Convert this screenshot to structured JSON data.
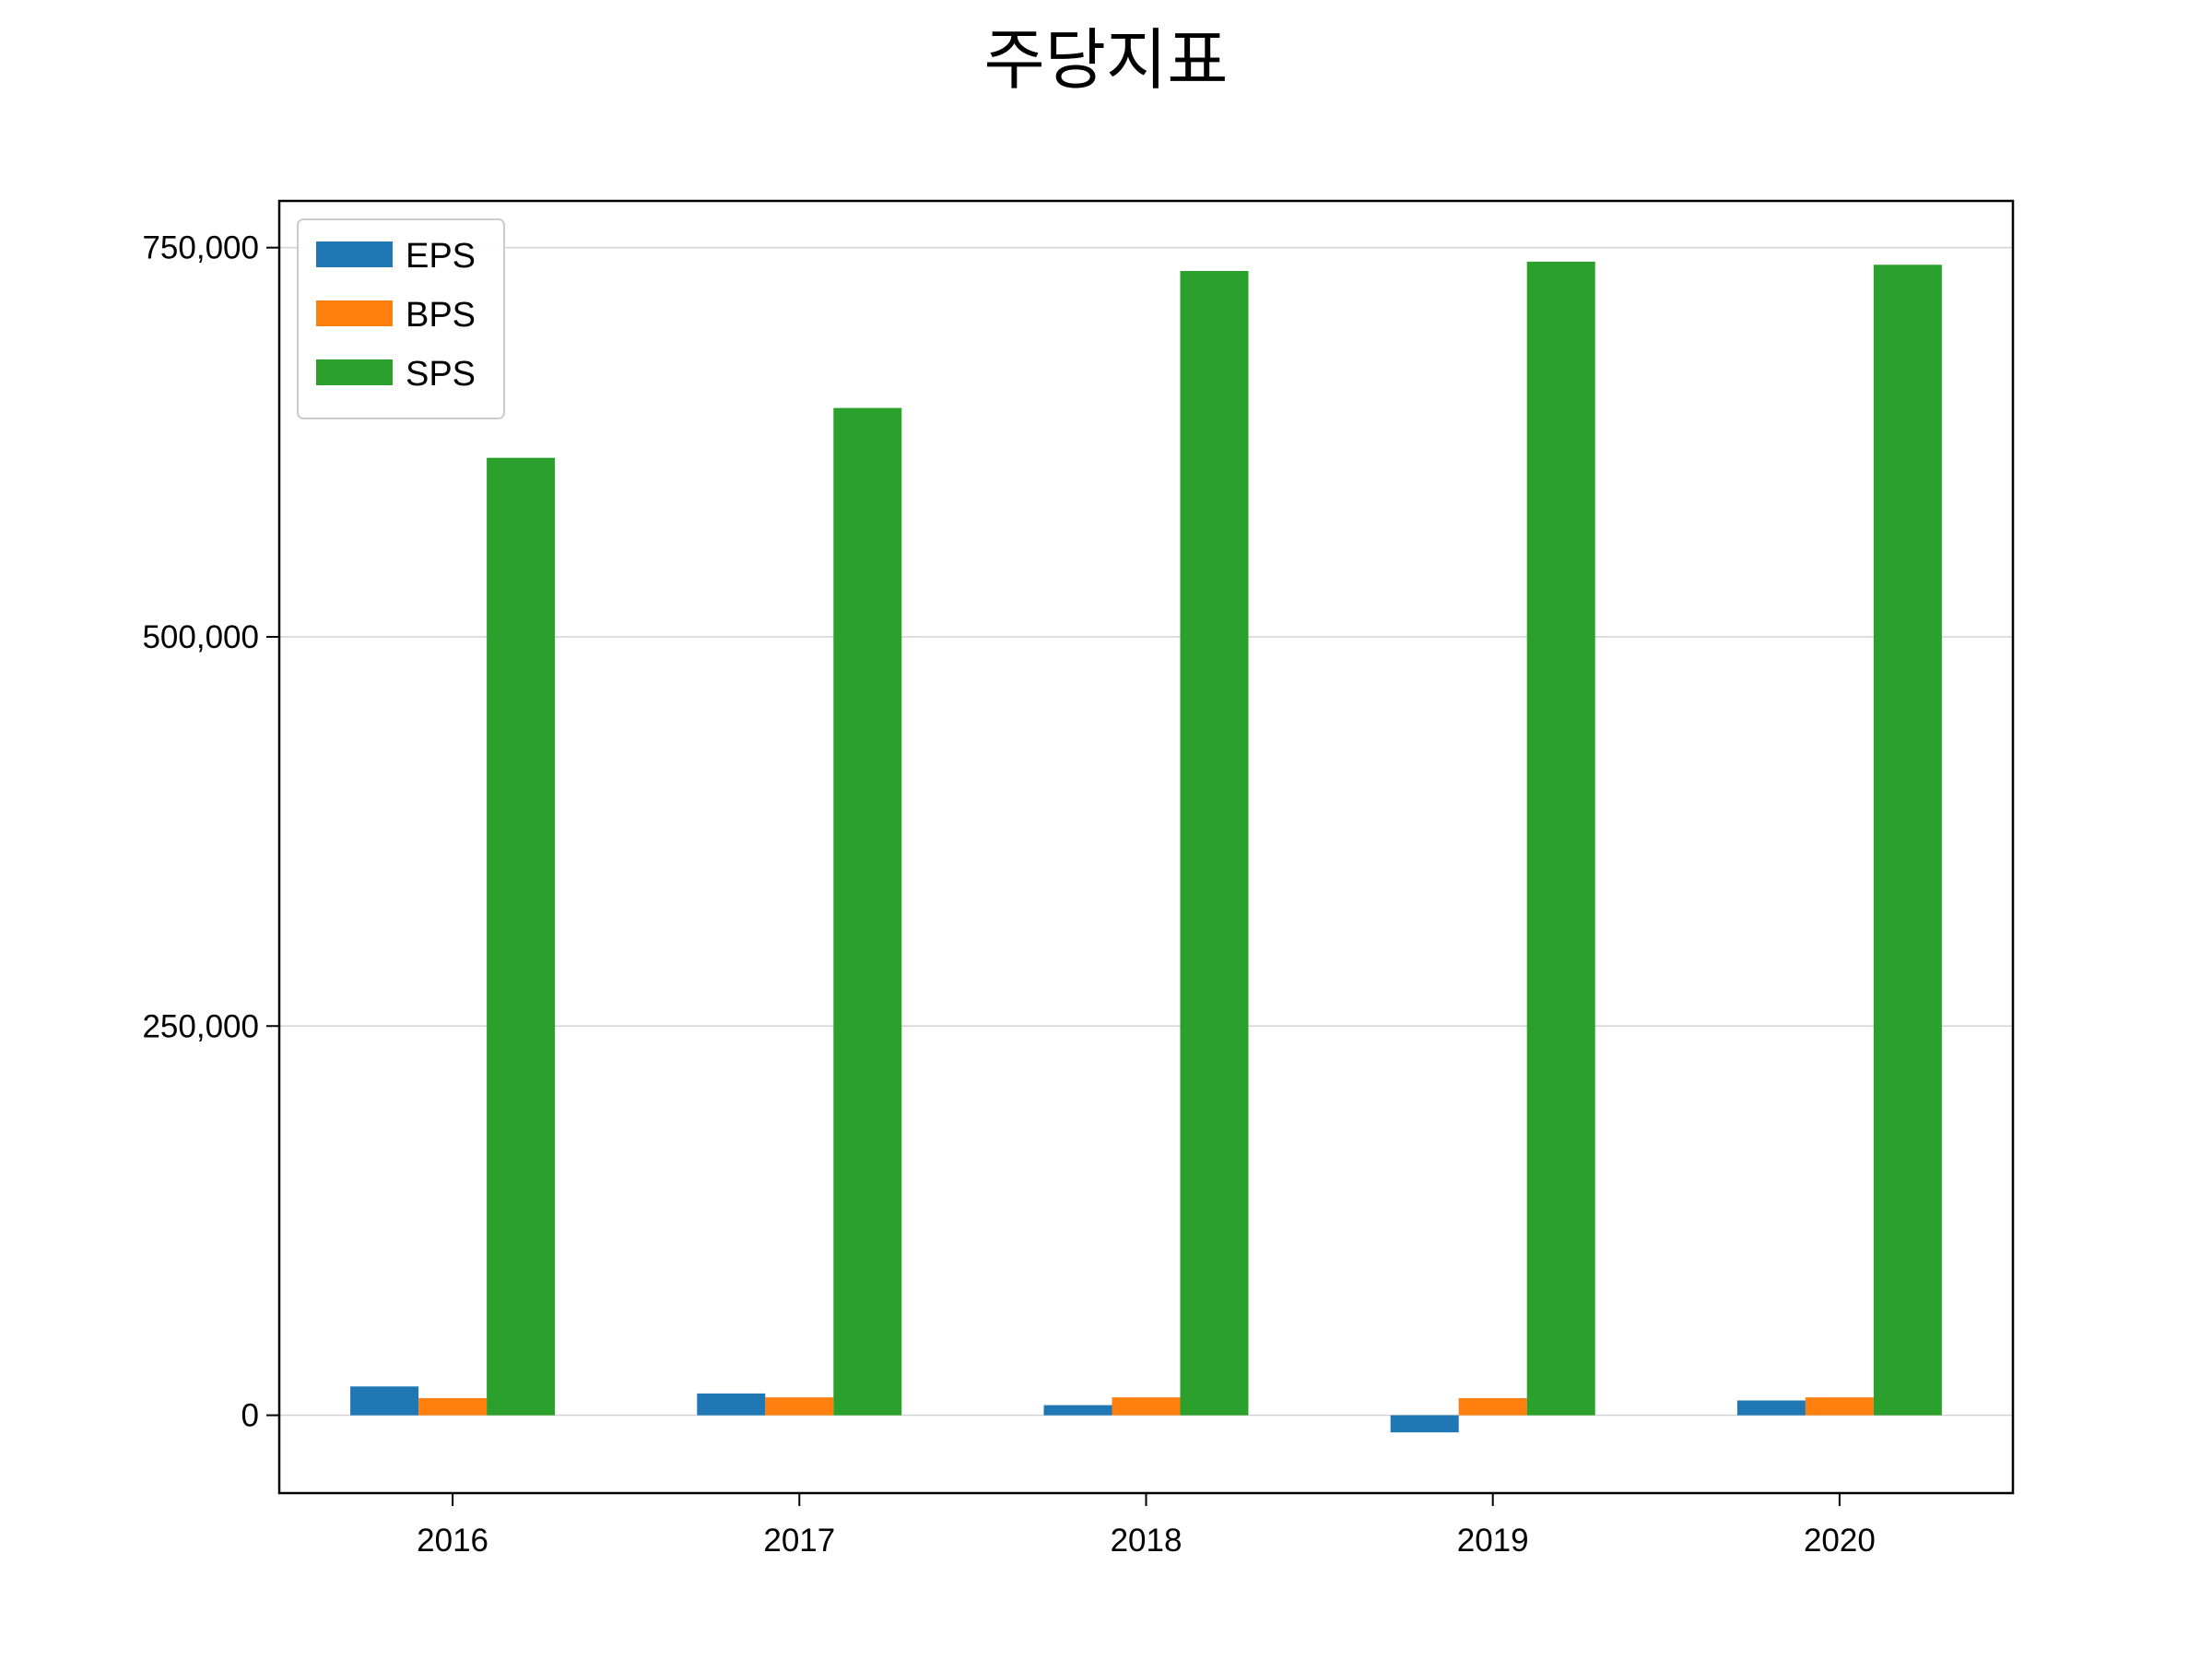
{
  "chart_data": {
    "type": "bar",
    "title": "주당지표",
    "xlabel": "",
    "ylabel": "",
    "categories": [
      "2016",
      "2017",
      "2018",
      "2019",
      "2020"
    ],
    "series": [
      {
        "name": "EPS",
        "color": "#1f77b4",
        "values": [
          18500,
          14000,
          6500,
          -11000,
          9500
        ]
      },
      {
        "name": "BPS",
        "color": "#ff7f0e",
        "values": [
          11000,
          11500,
          11500,
          11000,
          11500
        ]
      },
      {
        "name": "SPS",
        "color": "#2ca02c",
        "values": [
          615000,
          647000,
          735000,
          741000,
          739000
        ]
      }
    ],
    "ylim": [
      -50000,
      780000
    ],
    "yticks": [
      0,
      250000,
      500000,
      750000
    ],
    "ytick_labels": [
      "0",
      "250,000",
      "500,000",
      "750,000"
    ],
    "grid": {
      "y": true,
      "x": false
    },
    "legend": {
      "position": "top-left"
    }
  }
}
